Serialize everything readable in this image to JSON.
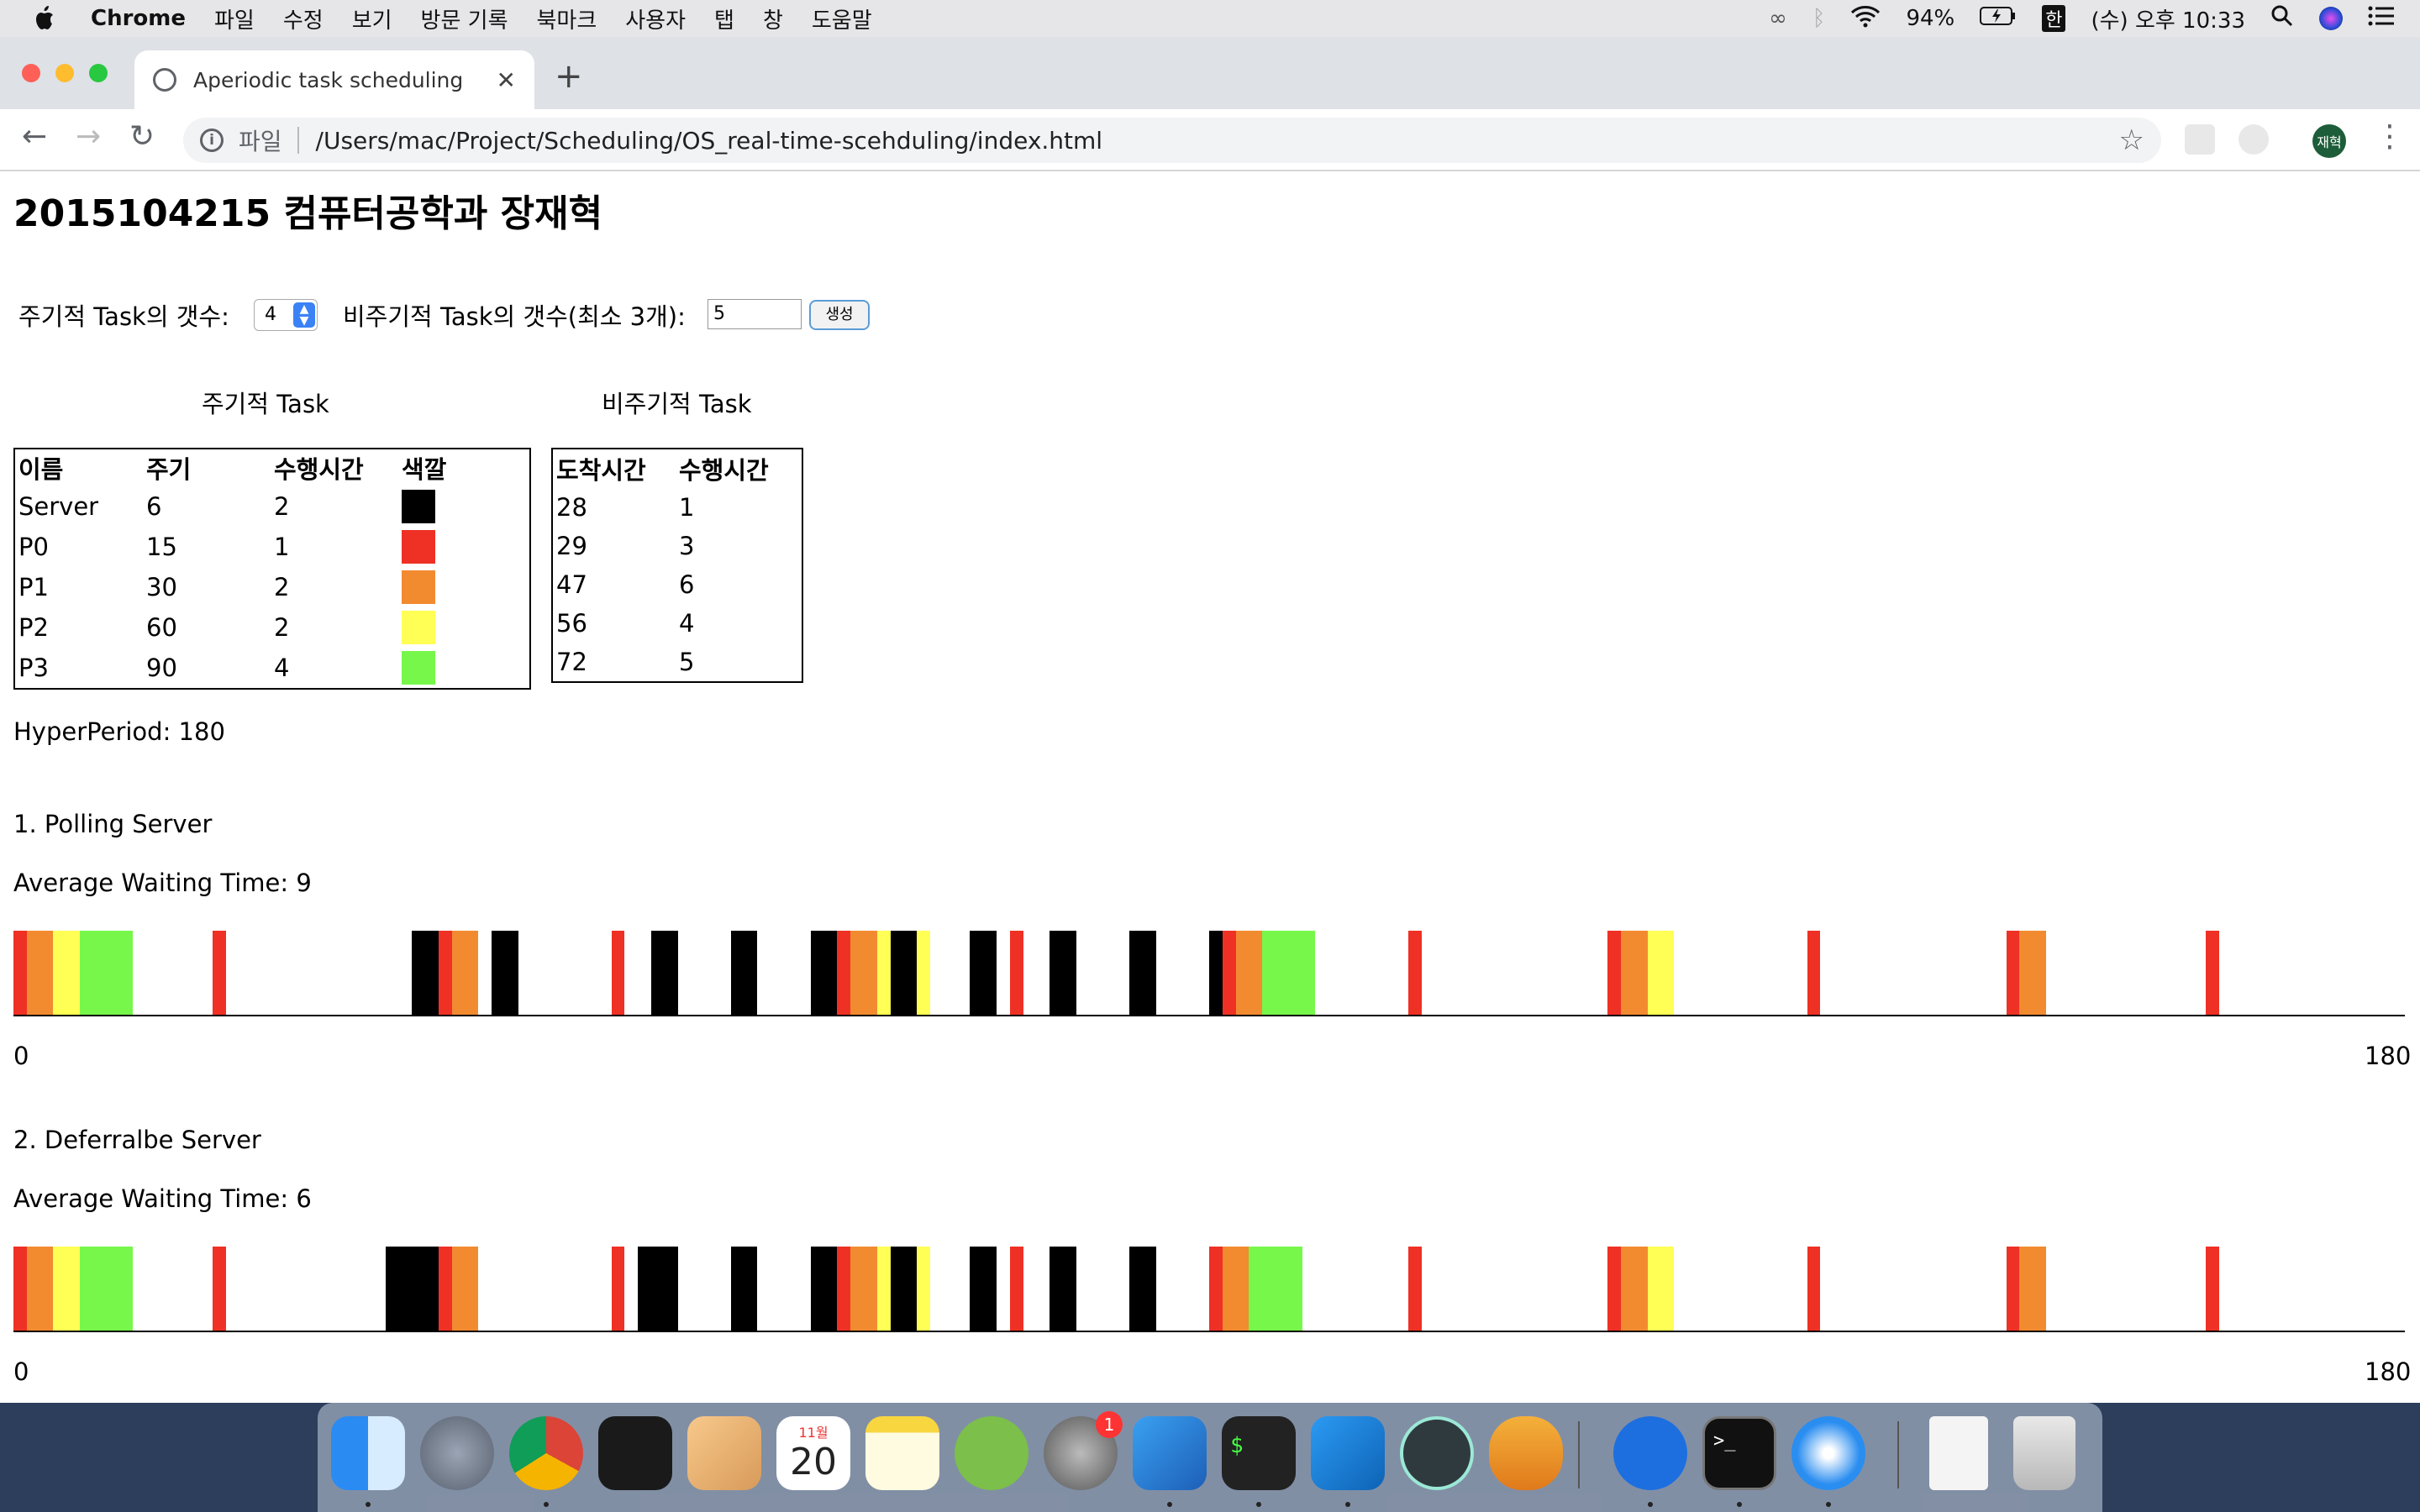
{
  "menubar": {
    "app": "Chrome",
    "items": [
      "파일",
      "수정",
      "보기",
      "방문 기록",
      "북마크",
      "사용자",
      "탭",
      "창",
      "도움말"
    ],
    "battery": "94%",
    "input_method": "한",
    "clock": "(수) 오후 10:33"
  },
  "browser": {
    "tab_title": "Aperiodic task scheduling",
    "url_scheme": "파일",
    "url": "/Users/mac/Project/Scheduling/OS_real-time-scehduling/index.html",
    "avatar": "재혁"
  },
  "page": {
    "heading": "2015104215 컴퓨터공학과 장재혁",
    "periodic_count_label": "주기적 Task의 갯수:",
    "periodic_count_value": "4",
    "aperiodic_count_label": "비주기적 Task의 갯수(최소 3개):",
    "aperiodic_count_value": "5",
    "generate_button": "생성",
    "periodic_caption": "주기적 Task",
    "aperiodic_caption": "비주기적 Task",
    "periodic_headers": [
      "이름",
      "주기",
      "수행시간",
      "색깔"
    ],
    "periodic_rows": [
      {
        "name": "Server",
        "period": "6",
        "exec": "2",
        "color": "#000000"
      },
      {
        "name": "P0",
        "period": "15",
        "exec": "1",
        "color": "#ee3124"
      },
      {
        "name": "P1",
        "period": "30",
        "exec": "2",
        "color": "#f28a30"
      },
      {
        "name": "P2",
        "period": "60",
        "exec": "2",
        "color": "#ffff55"
      },
      {
        "name": "P3",
        "period": "90",
        "exec": "4",
        "color": "#77f74a"
      }
    ],
    "aperiodic_headers": [
      "도착시간",
      "수행시간"
    ],
    "aperiodic_rows": [
      {
        "arrival": "28",
        "exec": "1"
      },
      {
        "arrival": "29",
        "exec": "3"
      },
      {
        "arrival": "47",
        "exec": "6"
      },
      {
        "arrival": "56",
        "exec": "4"
      },
      {
        "arrival": "72",
        "exec": "5"
      }
    ],
    "hyperperiod": "HyperPeriod: 180"
  },
  "chart_data": [
    {
      "type": "bar",
      "title": "1. Polling Server",
      "subtitle": "Average Waiting Time: 9",
      "xlim": [
        0,
        180
      ],
      "tick_labels": [
        "0",
        "180"
      ],
      "segments": [
        {
          "start": 0,
          "end": 1,
          "task": "P0"
        },
        {
          "start": 1,
          "end": 3,
          "task": "P1"
        },
        {
          "start": 3,
          "end": 5,
          "task": "P2"
        },
        {
          "start": 5,
          "end": 9,
          "task": "P3"
        },
        {
          "start": 15,
          "end": 16,
          "task": "P0"
        },
        {
          "start": 30,
          "end": 32,
          "task": "Server"
        },
        {
          "start": 32,
          "end": 33,
          "task": "P0"
        },
        {
          "start": 33,
          "end": 35,
          "task": "P1"
        },
        {
          "start": 36,
          "end": 38,
          "task": "Server"
        },
        {
          "start": 45,
          "end": 46,
          "task": "P0"
        },
        {
          "start": 48,
          "end": 50,
          "task": "Server"
        },
        {
          "start": 54,
          "end": 56,
          "task": "Server"
        },
        {
          "start": 60,
          "end": 62,
          "task": "Server"
        },
        {
          "start": 62,
          "end": 63,
          "task": "P0"
        },
        {
          "start": 63,
          "end": 65,
          "task": "P1"
        },
        {
          "start": 65,
          "end": 66,
          "task": "P2"
        },
        {
          "start": 66,
          "end": 68,
          "task": "Server"
        },
        {
          "start": 68,
          "end": 69,
          "task": "P2"
        },
        {
          "start": 72,
          "end": 74,
          "task": "Server"
        },
        {
          "start": 75,
          "end": 76,
          "task": "P0"
        },
        {
          "start": 78,
          "end": 80,
          "task": "Server"
        },
        {
          "start": 84,
          "end": 86,
          "task": "Server"
        },
        {
          "start": 90,
          "end": 91,
          "task": "Server"
        },
        {
          "start": 91,
          "end": 92,
          "task": "P0"
        },
        {
          "start": 92,
          "end": 94,
          "task": "P1"
        },
        {
          "start": 94,
          "end": 98,
          "task": "P3"
        },
        {
          "start": 105,
          "end": 106,
          "task": "P0"
        },
        {
          "start": 120,
          "end": 121,
          "task": "P0"
        },
        {
          "start": 121,
          "end": 123,
          "task": "P1"
        },
        {
          "start": 123,
          "end": 125,
          "task": "P2"
        },
        {
          "start": 135,
          "end": 136,
          "task": "P0"
        },
        {
          "start": 150,
          "end": 151,
          "task": "P0"
        },
        {
          "start": 151,
          "end": 153,
          "task": "P1"
        },
        {
          "start": 165,
          "end": 166,
          "task": "P0"
        }
      ]
    },
    {
      "type": "bar",
      "title": "2. Deferralbe Server",
      "subtitle": "Average Waiting Time: 6",
      "xlim": [
        0,
        180
      ],
      "tick_labels": [
        "0",
        "180"
      ],
      "segments": [
        {
          "start": 0,
          "end": 1,
          "task": "P0"
        },
        {
          "start": 1,
          "end": 3,
          "task": "P1"
        },
        {
          "start": 3,
          "end": 5,
          "task": "P2"
        },
        {
          "start": 5,
          "end": 9,
          "task": "P3"
        },
        {
          "start": 15,
          "end": 16,
          "task": "P0"
        },
        {
          "start": 28,
          "end": 32,
          "task": "Server"
        },
        {
          "start": 32,
          "end": 33,
          "task": "P0"
        },
        {
          "start": 33,
          "end": 35,
          "task": "P1"
        },
        {
          "start": 45,
          "end": 46,
          "task": "P0"
        },
        {
          "start": 47,
          "end": 50,
          "task": "Server"
        },
        {
          "start": 54,
          "end": 56,
          "task": "Server"
        },
        {
          "start": 60,
          "end": 62,
          "task": "Server"
        },
        {
          "start": 62,
          "end": 63,
          "task": "P0"
        },
        {
          "start": 63,
          "end": 65,
          "task": "P1"
        },
        {
          "start": 65,
          "end": 66,
          "task": "P2"
        },
        {
          "start": 66,
          "end": 68,
          "task": "Server"
        },
        {
          "start": 68,
          "end": 69,
          "task": "P2"
        },
        {
          "start": 72,
          "end": 74,
          "task": "Server"
        },
        {
          "start": 75,
          "end": 76,
          "task": "P0"
        },
        {
          "start": 78,
          "end": 80,
          "task": "Server"
        },
        {
          "start": 84,
          "end": 86,
          "task": "Server"
        },
        {
          "start": 90,
          "end": 91,
          "task": "P0"
        },
        {
          "start": 91,
          "end": 93,
          "task": "P1"
        },
        {
          "start": 93,
          "end": 97,
          "task": "P3"
        },
        {
          "start": 105,
          "end": 106,
          "task": "P0"
        },
        {
          "start": 120,
          "end": 121,
          "task": "P0"
        },
        {
          "start": 121,
          "end": 123,
          "task": "P1"
        },
        {
          "start": 123,
          "end": 125,
          "task": "P2"
        },
        {
          "start": 135,
          "end": 136,
          "task": "P0"
        },
        {
          "start": 150,
          "end": 151,
          "task": "P0"
        },
        {
          "start": 151,
          "end": 153,
          "task": "P1"
        },
        {
          "start": 165,
          "end": 166,
          "task": "P0"
        }
      ]
    }
  ],
  "dock": {
    "calendar_month": "11월",
    "calendar_day": "20",
    "badge": "1",
    "apps": [
      "finder-icon",
      "launchpad-icon",
      "chrome-icon",
      "keka-icon",
      "preview-icon",
      "calendar-icon",
      "notes-icon",
      "android-studio-icon",
      "system-preferences-icon",
      "xcode-icon",
      "terminal-icon",
      "vscode-icon",
      "atom-icon",
      "blimp-icon",
      "sourcetree-icon",
      "iterm-icon",
      "safari-icon",
      "pdf-icon",
      "trash-icon"
    ]
  }
}
